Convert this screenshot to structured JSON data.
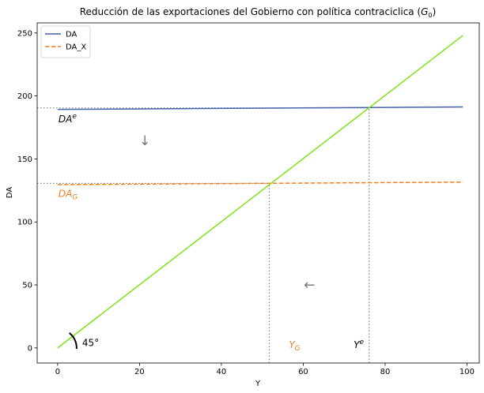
{
  "chart_data": {
    "type": "line",
    "title_main": "Reducción de las exportaciones del Gobierno con política contraciclica (",
    "title_sym": "G",
    "title_sub": "0",
    "title_close": ")",
    "xlabel": "Y",
    "ylabel": "DA",
    "xlim": [
      -5,
      103
    ],
    "ylim": [
      -12,
      258
    ],
    "x_ticks": [
      0,
      20,
      40,
      60,
      80,
      100
    ],
    "y_ticks": [
      0,
      50,
      100,
      150,
      200,
      250
    ],
    "legend_position": "top-left",
    "grid": false,
    "series": [
      {
        "name": "DA",
        "color": "#4562AD",
        "dash": "solid",
        "x": [
          0,
          99
        ],
        "y": [
          189.3,
          191.3
        ]
      },
      {
        "name": "DA_X",
        "color": "#F07F1E",
        "dash": "dashed",
        "x": [
          0,
          99
        ],
        "y": [
          129.6,
          131.6
        ]
      },
      {
        "name": "",
        "color": "#7FE21A",
        "dash": "solid",
        "x": [
          0,
          99
        ],
        "y": [
          0,
          248
        ]
      }
    ],
    "guides": {
      "color": "#888888",
      "horizontal": [
        {
          "y": 190.5,
          "x0": -5,
          "x1": 76.1
        },
        {
          "y": 130.6,
          "x0": -5,
          "x1": 51.7
        }
      ],
      "vertical": [
        {
          "x": 51.7,
          "y0": -12,
          "y1": 130.6
        },
        {
          "x": 76.1,
          "y0": -12,
          "y1": 190.5
        }
      ]
    },
    "annotations": {
      "da_e": {
        "base": "DA",
        "sup": "e",
        "x": 0.2,
        "y": 179,
        "color": "#000000"
      },
      "da_g": {
        "base": "DA",
        "sub": "G",
        "x": 0.2,
        "y": 120,
        "color": "#F07F1E"
      },
      "y_g": {
        "base": "Y",
        "sub": "G",
        "x": 56.5,
        "y": 0,
        "color": "#F07F1E"
      },
      "y_e": {
        "base": "Y",
        "sup": "e",
        "x": 72.3,
        "y": 0,
        "color": "#000000"
      },
      "angle": {
        "label": "45°",
        "x": 6,
        "y": 4,
        "color": "#000000"
      },
      "arrow_down": {
        "glyph": "↓",
        "x": 21.3,
        "y": 161,
        "color": "#777777"
      },
      "arrow_left": {
        "glyph": "←",
        "x": 61.5,
        "y": 46.5,
        "color": "#777777"
      }
    }
  }
}
